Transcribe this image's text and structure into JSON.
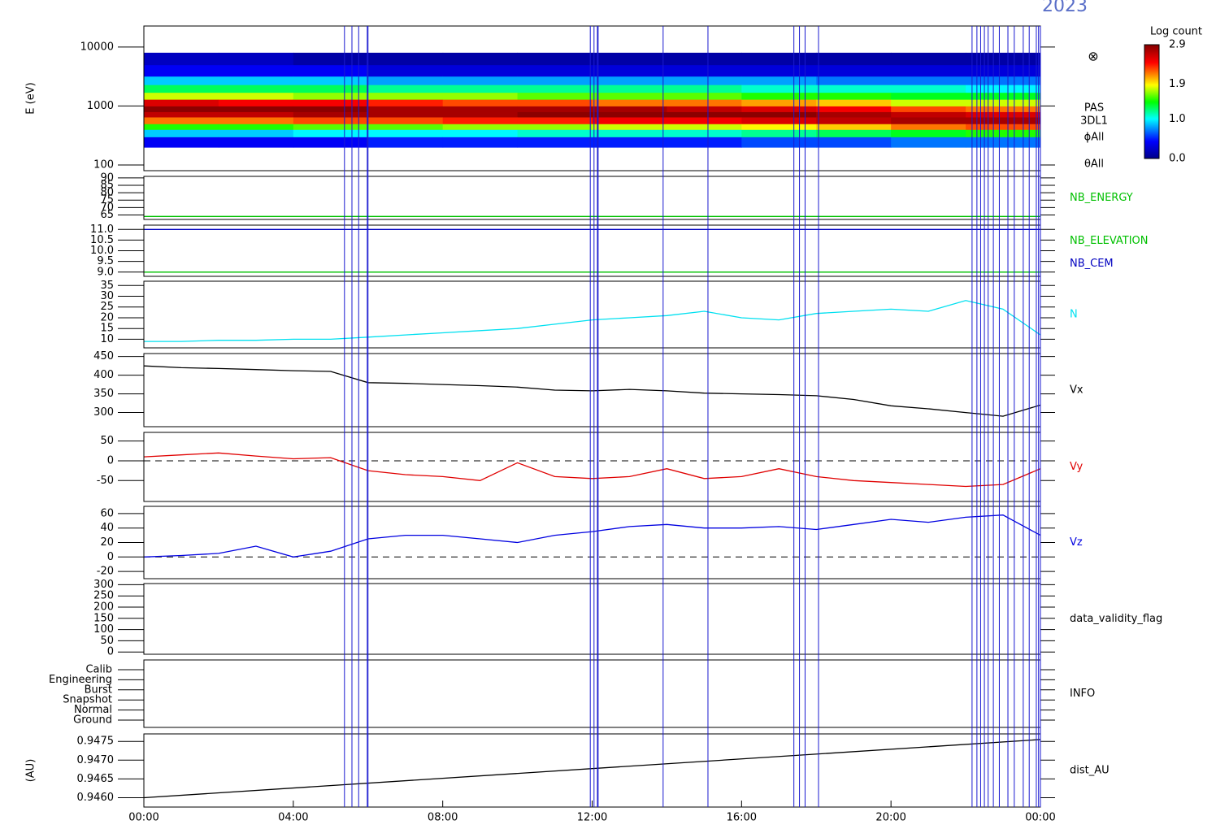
{
  "chart_data": [
    {
      "type": "spectrogram",
      "title": "2023",
      "ylabel": "E (eV)",
      "log": true,
      "ylim": [
        80,
        22700
      ],
      "yticks": [
        100,
        1000,
        10000
      ],
      "xlim": [
        0,
        24
      ],
      "x_bins": [
        0,
        2,
        4,
        6,
        8,
        10,
        12,
        14,
        16,
        18,
        20,
        22,
        24
      ],
      "y_bins": [
        200,
        300,
        400,
        500,
        650,
        800,
        1000,
        1300,
        1700,
        2300,
        3200,
        5000,
        8000
      ],
      "values": [
        [
          0.4,
          0.9,
          1.5,
          2.2,
          2.7,
          2.9,
          2.6,
          1.8,
          1.3,
          0.9,
          0.4,
          0.2
        ],
        [
          0.4,
          0.9,
          1.5,
          2.2,
          2.7,
          2.9,
          2.5,
          1.8,
          1.3,
          0.9,
          0.4,
          0.2
        ],
        [
          0.4,
          1.0,
          1.6,
          2.3,
          2.8,
          2.9,
          2.5,
          1.7,
          1.3,
          0.9,
          0.4,
          0.1
        ],
        [
          0.5,
          1.0,
          1.6,
          2.3,
          2.8,
          2.8,
          2.4,
          1.7,
          1.2,
          0.8,
          0.3,
          0.1
        ],
        [
          0.5,
          1.0,
          1.7,
          2.4,
          2.8,
          2.8,
          2.3,
          1.7,
          1.2,
          0.8,
          0.3,
          0.1
        ],
        [
          0.5,
          1.1,
          1.7,
          2.4,
          2.9,
          2.8,
          2.3,
          1.6,
          1.2,
          0.8,
          0.3,
          0.1
        ],
        [
          0.5,
          1.1,
          1.8,
          2.5,
          2.9,
          2.8,
          2.2,
          1.6,
          1.2,
          0.8,
          0.3,
          0.1
        ],
        [
          0.5,
          1.1,
          1.8,
          2.5,
          2.9,
          2.7,
          2.2,
          1.6,
          1.2,
          0.8,
          0.3,
          0.1
        ],
        [
          0.6,
          1.2,
          1.9,
          2.6,
          2.9,
          2.6,
          2.1,
          1.5,
          1.1,
          0.8,
          0.3,
          0.1
        ],
        [
          0.6,
          1.3,
          2.0,
          2.7,
          2.8,
          2.5,
          2.0,
          1.5,
          1.1,
          0.7,
          0.3,
          0.1
        ],
        [
          0.7,
          1.4,
          2.2,
          2.8,
          2.7,
          2.3,
          1.8,
          1.4,
          1.1,
          0.7,
          0.3,
          0.1
        ],
        [
          0.7,
          1.5,
          2.3,
          2.8,
          2.6,
          2.2,
          1.8,
          1.4,
          1.0,
          0.7,
          0.3,
          0.1
        ]
      ],
      "clim": [
        0,
        2.9
      ],
      "colorbar_title": "Log count",
      "colorbar_ticks": [
        {
          "value": 0,
          "label": "0.0"
        },
        {
          "value": 1,
          "label": "1.0"
        },
        {
          "value": 1.9,
          "label": "1.9"
        },
        {
          "value": 2.9,
          "label": "2.9"
        }
      ],
      "side_labels": [
        "PAS",
        "3DL1",
        "ϕAll",
        "θAll"
      ],
      "symbol": "⊗",
      "events": [
        5.37,
        5.57,
        5.75,
        5.98,
        6.0,
        11.95,
        12.05,
        12.14,
        12.16,
        13.9,
        15.1,
        17.4,
        17.55,
        17.7,
        18.06,
        22.17,
        22.3,
        22.4,
        22.5,
        22.6,
        22.74,
        22.9,
        23.13,
        23.3,
        23.54,
        23.7,
        23.89,
        23.95,
        24.0
      ]
    },
    {
      "type": "line",
      "ylim": [
        62,
        91
      ],
      "yticks": [
        65,
        70,
        75,
        80,
        85,
        90
      ],
      "xlim": [
        0,
        24
      ],
      "series": [
        {
          "name": "NB_ENERGY",
          "color": "#00c000",
          "x": [
            0,
            24
          ],
          "values": [
            64,
            64
          ]
        }
      ]
    },
    {
      "type": "line",
      "ylim": [
        8.8,
        11.2
      ],
      "yticks": [
        {
          "value": 9,
          "label": "9.0"
        },
        {
          "value": 9.5,
          "label": "9.5"
        },
        {
          "value": 10,
          "label": "10.0"
        },
        {
          "value": 10.5,
          "label": "10.5"
        },
        {
          "value": 11,
          "label": "11.0"
        }
      ],
      "xlim": [
        0,
        24
      ],
      "series": [
        {
          "name": "NB_ELEVATION",
          "color": "#00c000",
          "x": [
            0,
            24
          ],
          "values": [
            9,
            9
          ]
        },
        {
          "name": "NB_CEM",
          "color": "#0000c0",
          "x": [
            0,
            24
          ],
          "values": [
            11,
            11
          ]
        }
      ]
    },
    {
      "type": "line",
      "ylim": [
        6,
        37
      ],
      "yticks": [
        10,
        15,
        20,
        25,
        30,
        35
      ],
      "xlim": [
        0,
        24
      ],
      "series": [
        {
          "name": "N",
          "color": "#00e0f0",
          "x": [
            0,
            1,
            2,
            3,
            4,
            5,
            6,
            7,
            8,
            9,
            10,
            11,
            12,
            13,
            14,
            15,
            16,
            17,
            18,
            19,
            20,
            21,
            22,
            23,
            24
          ],
          "values": [
            9,
            9,
            9.5,
            9.5,
            10,
            10,
            11,
            12,
            13,
            14,
            15,
            17,
            19,
            20,
            21,
            23,
            20,
            19,
            22,
            23,
            24,
            23,
            28,
            24,
            12
          ]
        }
      ]
    },
    {
      "type": "line",
      "ylim": [
        262,
        458
      ],
      "yticks": [
        300,
        350,
        400,
        450
      ],
      "xlim": [
        0,
        24
      ],
      "series": [
        {
          "name": "Vx",
          "color": "#000000",
          "x": [
            0,
            1,
            2,
            3,
            4,
            5,
            6,
            7,
            8,
            9,
            10,
            11,
            12,
            13,
            14,
            15,
            16,
            17,
            18,
            19,
            20,
            21,
            22,
            23,
            24
          ],
          "values": [
            425,
            420,
            418,
            415,
            412,
            410,
            380,
            378,
            375,
            372,
            368,
            360,
            358,
            362,
            358,
            352,
            350,
            348,
            345,
            335,
            318,
            310,
            300,
            290,
            320
          ]
        }
      ]
    },
    {
      "type": "line",
      "ylim": [
        -103,
        72
      ],
      "yticks": [
        -50,
        0,
        50
      ],
      "xlim": [
        0,
        24
      ],
      "zero_line": true,
      "series": [
        {
          "name": "Vy",
          "color": "#e00000",
          "x": [
            0,
            1,
            2,
            3,
            4,
            5,
            6,
            7,
            8,
            9,
            10,
            11,
            12,
            13,
            14,
            15,
            16,
            17,
            18,
            19,
            20,
            21,
            22,
            23,
            24
          ],
          "values": [
            10,
            15,
            20,
            12,
            5,
            8,
            -25,
            -35,
            -40,
            -50,
            -5,
            -40,
            -45,
            -40,
            -20,
            -45,
            -40,
            -20,
            -40,
            -50,
            -55,
            -60,
            -65,
            -60,
            -20
          ]
        }
      ]
    },
    {
      "type": "line",
      "ylim": [
        -30,
        70
      ],
      "yticks": [
        -20,
        0,
        20,
        40,
        60
      ],
      "xlim": [
        0,
        24
      ],
      "zero_line": true,
      "series": [
        {
          "name": "Vz",
          "color": "#0000e0",
          "x": [
            0,
            1,
            2,
            3,
            4,
            5,
            6,
            7,
            8,
            9,
            10,
            11,
            12,
            13,
            14,
            15,
            16,
            17,
            18,
            19,
            20,
            21,
            22,
            23,
            24
          ],
          "values": [
            0,
            2,
            5,
            15,
            0,
            8,
            25,
            30,
            30,
            25,
            20,
            30,
            35,
            42,
            45,
            40,
            40,
            42,
            38,
            45,
            52,
            48,
            55,
            58,
            30
          ]
        }
      ]
    },
    {
      "type": "line",
      "label": "data_validity_flag",
      "ylim": [
        -10,
        305
      ],
      "yticks": [
        0,
        50,
        100,
        150,
        200,
        250,
        300
      ],
      "xlim": [
        0,
        24
      ],
      "series": []
    },
    {
      "type": "category",
      "label": "INFO",
      "categories": [
        "Ground",
        "Normal",
        "Snapshot",
        "Burst",
        "Engineering",
        "Calib"
      ]
    },
    {
      "type": "line",
      "ylabel": "(AU)",
      "ylim": [
        0.94575,
        0.9477
      ],
      "xlim": [
        0,
        24
      ],
      "yticks": [
        {
          "value": 0.946,
          "label": "0.9460"
        },
        {
          "value": 0.9465,
          "label": "0.9465"
        },
        {
          "value": 0.947,
          "label": "0.9470"
        },
        {
          "value": 0.9475,
          "label": "0.9475"
        }
      ],
      "xticks": [
        {
          "value": 0,
          "label": "00:00"
        },
        {
          "value": 4,
          "label": "04:00"
        },
        {
          "value": 8,
          "label": "08:00"
        },
        {
          "value": 12,
          "label": "12:00"
        },
        {
          "value": 16,
          "label": "16:00"
        },
        {
          "value": 20,
          "label": "20:00"
        },
        {
          "value": 24,
          "label": "00:00"
        }
      ],
      "series": [
        {
          "name": "dist_AU",
          "color": "#000000",
          "x": [
            0,
            24
          ],
          "values": [
            0.946,
            0.94755
          ]
        }
      ]
    }
  ]
}
